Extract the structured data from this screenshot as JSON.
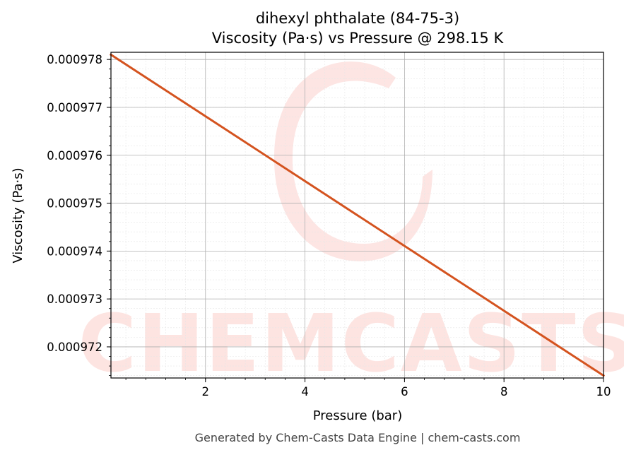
{
  "chart_data": {
    "type": "line",
    "title": "dihexyl phthalate (84-75-3)",
    "subtitle": "Viscosity (Pa·s) vs Pressure @ 298.15 K",
    "xlabel": "Pressure (bar)",
    "ylabel": "Viscosity (Pa·s)",
    "xlim": [
      0.1,
      10
    ],
    "ylim": [
      0.00097135,
      0.00097815
    ],
    "xticks": [
      2,
      4,
      6,
      8,
      10
    ],
    "xtick_labels": [
      "2",
      "4",
      "6",
      "8",
      "10"
    ],
    "yticks": [
      0.000972,
      0.000973,
      0.000974,
      0.000975,
      0.000976,
      0.000977,
      0.000978
    ],
    "ytick_labels": [
      "0.000972",
      "0.000973",
      "0.000974",
      "0.000975",
      "0.000976",
      "0.000977",
      "0.000978"
    ],
    "grid": true,
    "line_color": "#d4531f",
    "series": [
      {
        "x": [
          0.1,
          10
        ],
        "y": [
          0.0009781,
          0.0009714
        ]
      }
    ]
  },
  "watermark": {
    "text": "CHEMCASTS",
    "color": "#fde4e1"
  },
  "footer": "Generated by Chem-Casts Data Engine | chem-casts.com"
}
